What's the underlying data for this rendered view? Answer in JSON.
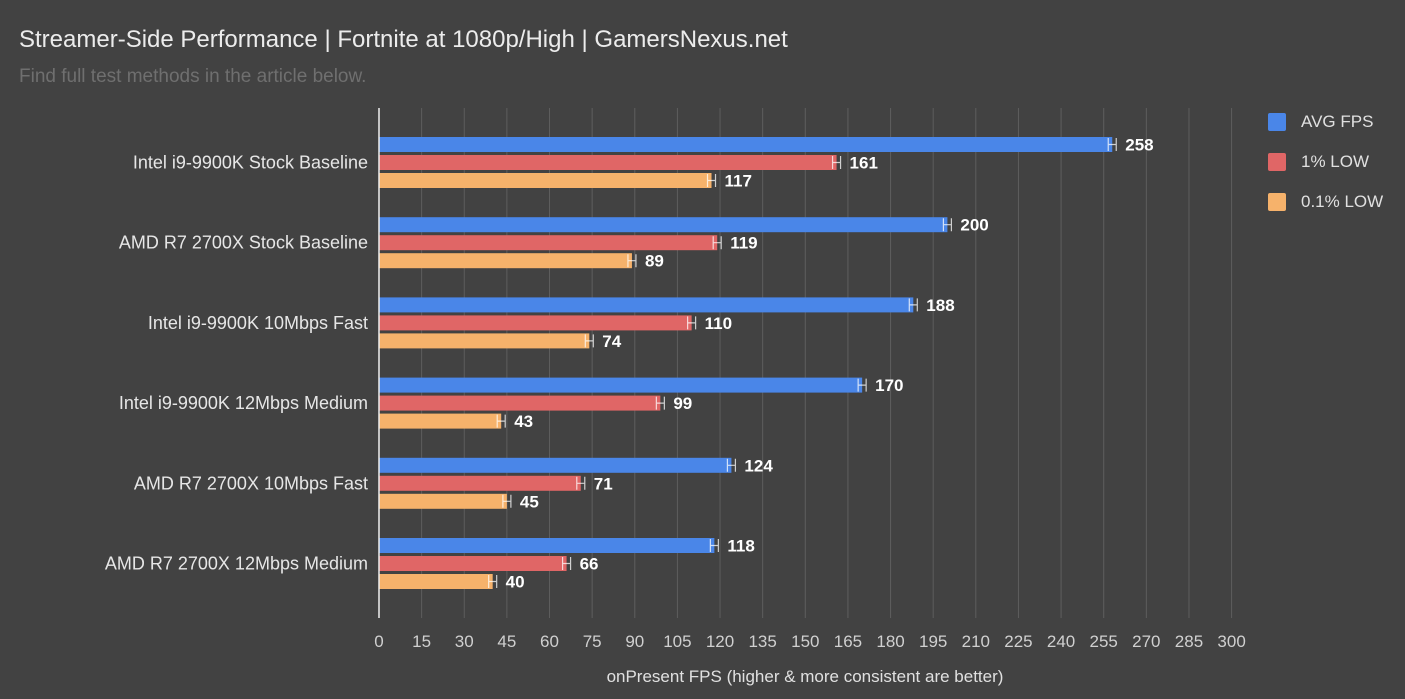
{
  "chart_data": {
    "type": "bar",
    "orientation": "horizontal",
    "title": "Streamer-Side Performance | Fortnite at 1080p/High | GamersNexus.net",
    "subtitle": "Find full test methods in the article below.",
    "xlabel": "onPresent FPS (higher & more consistent are better)",
    "ylabel": "",
    "xlim": [
      0,
      300
    ],
    "xticks": [
      0,
      15,
      30,
      45,
      60,
      75,
      90,
      105,
      120,
      135,
      150,
      165,
      180,
      195,
      210,
      225,
      240,
      255,
      270,
      285,
      300
    ],
    "grid": true,
    "legend_position": "right",
    "error_bars": true,
    "categories": [
      "Intel i9-9900K Stock Baseline",
      "AMD R7 2700X Stock Baseline",
      "Intel i9-9900K 10Mbps Fast",
      "Intel i9-9900K 12Mbps Medium",
      "AMD R7 2700X 10Mbps Fast",
      "AMD R7 2700X 12Mbps Medium"
    ],
    "series": [
      {
        "name": "AVG FPS",
        "color": "#4a86e8",
        "values": [
          258,
          200,
          188,
          170,
          124,
          118
        ]
      },
      {
        "name": "1% LOW",
        "color": "#e06666",
        "values": [
          161,
          119,
          110,
          99,
          71,
          66
        ]
      },
      {
        "name": "0.1% LOW",
        "color": "#f6b26b",
        "values": [
          117,
          89,
          74,
          43,
          45,
          40
        ]
      }
    ]
  }
}
